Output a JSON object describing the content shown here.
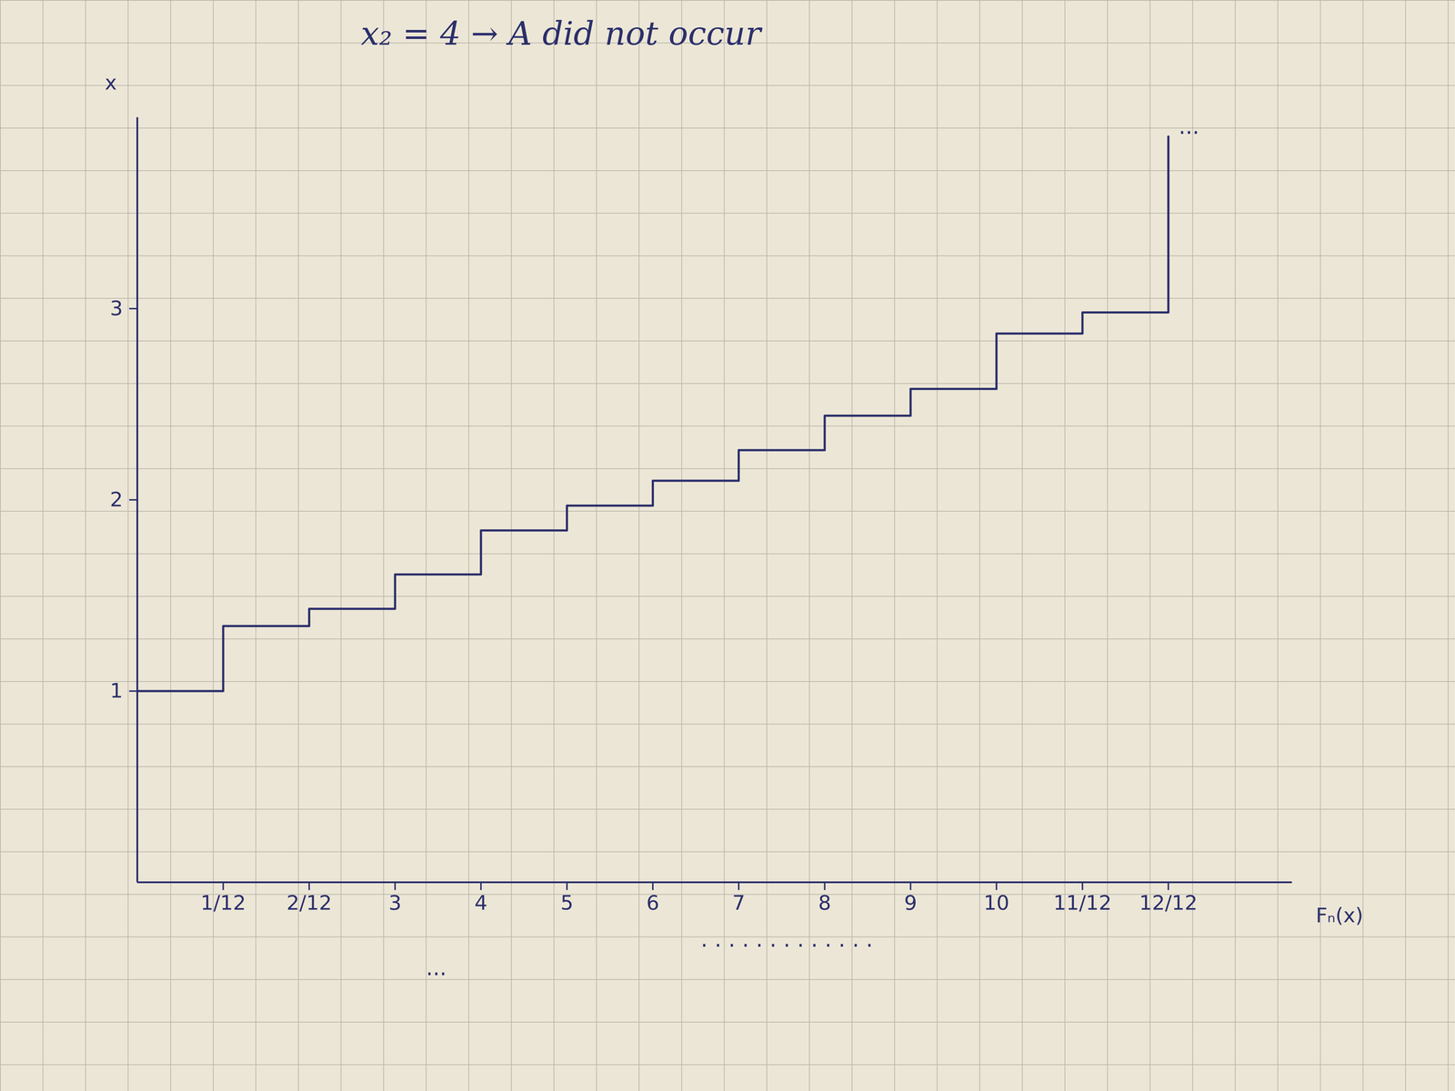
{
  "chart_data": {
    "type": "line",
    "line_style": "step",
    "title": "x₂ = 4  →  A did not occur",
    "x_label": "Fₙ(x)",
    "y_label": "x",
    "color": "#2b2f6b",
    "x": [
      0,
      0.0833,
      0.1667,
      0.25,
      0.3333,
      0.4167,
      0.5,
      0.5833,
      0.6667,
      0.75,
      0.8333,
      0.9167,
      1,
      1
    ],
    "values": [
      1.0,
      1.34,
      1.43,
      1.61,
      1.84,
      1.97,
      2.1,
      2.26,
      2.44,
      2.58,
      2.87,
      2.98,
      2.98,
      3.9
    ],
    "xlim": [
      0,
      1.12
    ],
    "ylim": [
      0,
      4
    ],
    "xticks": [
      {
        "value": 0.0833,
        "label": "1/12"
      },
      {
        "value": 0.1667,
        "label": "2/12"
      },
      {
        "value": 0.25,
        "label": "3"
      },
      {
        "value": 0.3333,
        "label": "4"
      },
      {
        "value": 0.4167,
        "label": "5"
      },
      {
        "value": 0.5,
        "label": "6"
      },
      {
        "value": 0.5833,
        "label": "7"
      },
      {
        "value": 0.6667,
        "label": "8"
      },
      {
        "value": 0.75,
        "label": "9"
      },
      {
        "value": 0.8333,
        "label": "10"
      },
      {
        "value": 0.9167,
        "label": "11/12"
      },
      {
        "value": 1,
        "label": "12/12"
      }
    ],
    "yticks": [
      1,
      2,
      3
    ],
    "annotations": [
      {
        "text": "...",
        "x": 1.02,
        "y": 3.95
      },
      {
        "text": "...",
        "x": 0.29,
        "y": -0.45
      },
      {
        "text": ". . . . . . . . . . . . .",
        "x": 0.63,
        "y": -0.3
      }
    ]
  }
}
